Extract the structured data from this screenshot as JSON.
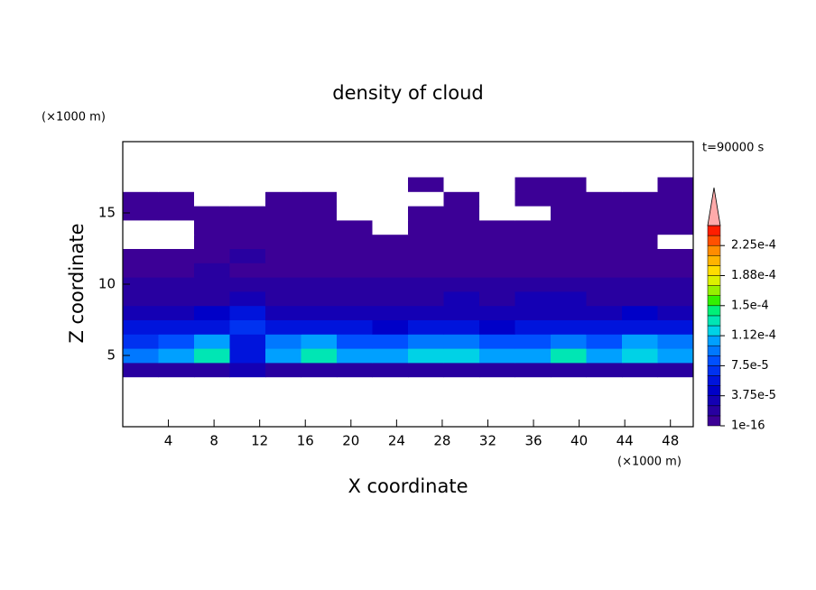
{
  "chart_data": {
    "type": "contour",
    "title": "density of cloud",
    "x_label": "X coordinate",
    "y_label": "Z coordinate",
    "x_unit": "(×1000 m)",
    "y_unit": "(×1000 m)",
    "annotation": "t=90000 s",
    "xlim": [
      0,
      50
    ],
    "ylim": [
      0,
      20
    ],
    "xticks": [
      4,
      8,
      12,
      16,
      20,
      24,
      28,
      32,
      36,
      40,
      44,
      48
    ],
    "yticks": [
      5,
      10,
      15
    ],
    "x_edges": [
      0,
      3.125,
      6.25,
      9.375,
      12.5,
      15.625,
      18.75,
      21.875,
      25,
      28.125,
      31.25,
      34.375,
      37.5,
      40.625,
      43.75,
      46.875,
      50
    ],
    "z_edges": [
      3.5,
      4.5,
      5.5,
      6.5,
      7.5,
      8.5,
      9.5,
      10.5,
      11.5,
      12.5,
      13.5,
      14.5,
      15.5,
      16.5,
      17.5
    ],
    "values": [
      [
        1.5e-05,
        1.5e-05,
        1.5e-05,
        3e-05,
        1.5e-05,
        1.5e-05,
        1.5e-05,
        1.5e-05,
        1.5e-05,
        1.5e-05,
        1.5e-05,
        1.5e-05,
        1.5e-05,
        1.5e-05,
        1.5e-05,
        1.5e-05
      ],
      [
        9e-05,
        0.0001,
        0.00013,
        6e-05,
        0.00011,
        0.00013,
        0.0001,
        0.00011,
        0.00012,
        0.00012,
        0.0001,
        0.00011,
        0.00013,
        0.0001,
        0.00012,
        0.00011
      ],
      [
        7e-05,
        8e-05,
        0.0001,
        5e-05,
        9e-05,
        0.00011,
        8e-05,
        8e-05,
        9e-05,
        9e-05,
        8e-05,
        8e-05,
        9e-05,
        8e-05,
        0.0001,
        9e-05
      ],
      [
        5e-05,
        5e-05,
        6e-05,
        7e-05,
        5e-05,
        6e-05,
        5e-05,
        4e-05,
        5e-05,
        5e-05,
        4e-05,
        5e-05,
        5e-05,
        5e-05,
        6e-05,
        5e-05
      ],
      [
        3e-05,
        3e-05,
        4e-05,
        5e-05,
        3e-05,
        3e-05,
        3e-05,
        3e-05,
        3e-05,
        3e-05,
        3e-05,
        3e-05,
        3e-05,
        3e-05,
        4e-05,
        3e-05
      ],
      [
        2e-05,
        2e-05,
        2e-05,
        3e-05,
        2e-05,
        2e-05,
        2e-05,
        2e-05,
        2e-05,
        3e-05,
        2e-05,
        3e-05,
        3e-05,
        2e-05,
        2e-05,
        2e-05
      ],
      [
        1.5e-05,
        2e-05,
        1.5e-05,
        2e-05,
        1.5e-05,
        1.5e-05,
        1.5e-05,
        1.5e-05,
        1.5e-05,
        1.5e-05,
        1.5e-05,
        2e-05,
        2e-05,
        1.5e-05,
        1.5e-05,
        1.5e-05
      ],
      [
        1e-05,
        1e-05,
        1.5e-05,
        1e-05,
        1e-05,
        1e-05,
        1e-05,
        1e-05,
        1e-05,
        1e-05,
        1e-05,
        1e-05,
        1e-05,
        1e-05,
        1e-05,
        1e-05
      ],
      [
        8e-06,
        8e-06,
        8e-06,
        1.5e-05,
        8e-06,
        8e-06,
        8e-06,
        8e-06,
        8e-06,
        8e-06,
        8e-06,
        8e-06,
        8e-06,
        8e-06,
        8e-06,
        8e-06
      ],
      [
        0,
        0,
        8e-06,
        5e-06,
        5e-06,
        5e-06,
        5e-06,
        5e-06,
        5e-06,
        5e-06,
        5e-06,
        5e-06,
        5e-06,
        5e-06,
        5e-06,
        0
      ],
      [
        0,
        0,
        5e-06,
        5e-06,
        5e-06,
        5e-06,
        8e-06,
        0,
        5e-06,
        5e-06,
        5e-06,
        5e-06,
        5e-06,
        5e-06,
        5e-06,
        5e-06
      ],
      [
        3e-06,
        5e-06,
        3e-06,
        3e-06,
        5e-06,
        3e-06,
        0,
        0,
        3e-06,
        3e-06,
        0,
        0,
        3e-06,
        5e-06,
        3e-06,
        3e-06
      ],
      [
        3e-06,
        3e-06,
        0,
        0,
        3e-06,
        3e-06,
        0,
        0,
        0,
        3e-06,
        0,
        3e-06,
        3e-06,
        3e-06,
        3e-06,
        3e-06
      ],
      [
        0,
        0,
        0,
        0,
        0,
        0,
        0,
        0,
        2e-06,
        0,
        0,
        2e-06,
        2e-06,
        0,
        0,
        2e-06
      ]
    ],
    "levels": [
      1e-16,
      1.25e-05,
      2.5e-05,
      3.75e-05,
      5e-05,
      6.25e-05,
      7.5e-05,
      8.75e-05,
      0.0001,
      0.0001125,
      0.000125,
      0.0001375,
      0.00015,
      0.0001625,
      0.000175,
      0.0001875,
      0.0002,
      0.0002125,
      0.000225,
      0.0002375,
      0.00025
    ],
    "colors": [
      "#3c0096",
      "#2800a0",
      "#1400b4",
      "#0000c8",
      "#0014dc",
      "#0032f0",
      "#0050ff",
      "#0078ff",
      "#00a0ff",
      "#00d2e6",
      "#00e6b4",
      "#00f078",
      "#32f000",
      "#96f000",
      "#dcf000",
      "#ffdc00",
      "#ffb400",
      "#ff8c00",
      "#ff5000",
      "#ff1e00"
    ],
    "extend_color": "#ffaaaa",
    "colorbar_ticks": [
      {
        "value": 1e-16,
        "label": "1e-16"
      },
      {
        "value": 3.75e-05,
        "label": "3.75e-5"
      },
      {
        "value": 7.5e-05,
        "label": "7.5e-5"
      },
      {
        "value": 0.0001125,
        "label": "1.12e-4"
      },
      {
        "value": 0.00015,
        "label": "1.5e-4"
      },
      {
        "value": 0.0001875,
        "label": "1.88e-4"
      },
      {
        "value": 0.000225,
        "label": "2.25e-4"
      }
    ]
  }
}
